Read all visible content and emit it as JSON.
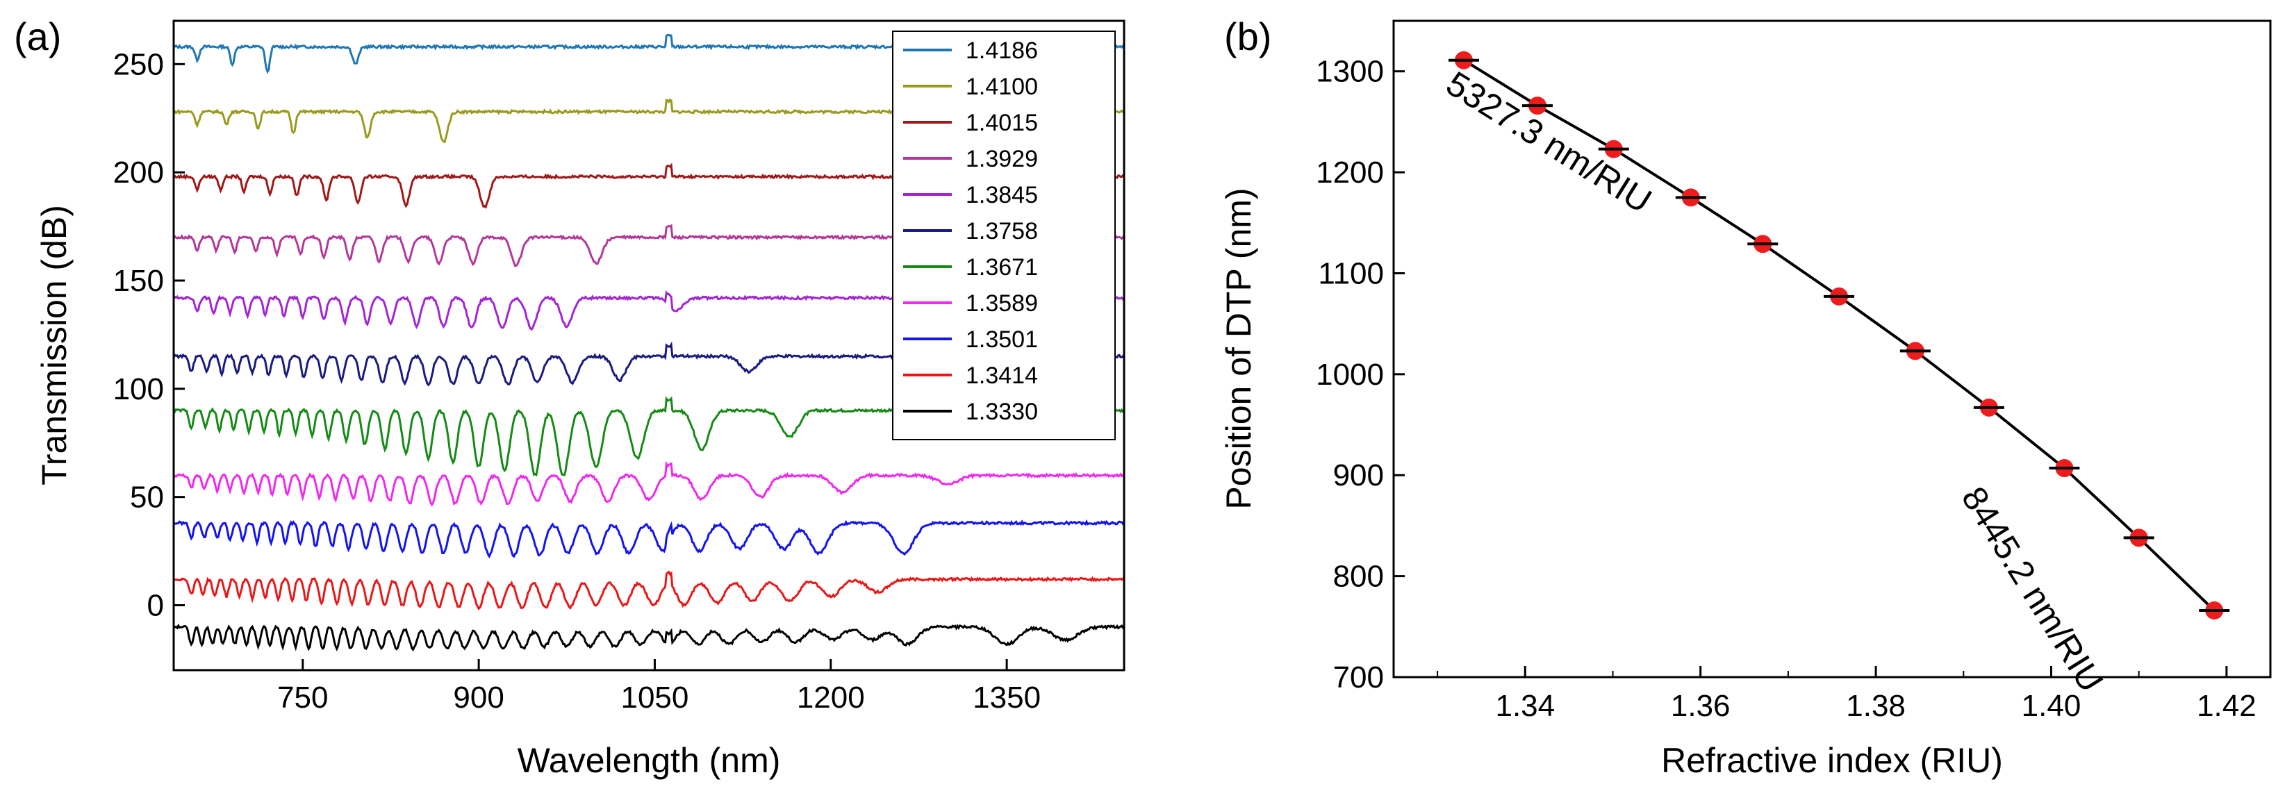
{
  "chart_data": [
    {
      "panel_label": "(a)",
      "type": "line",
      "xlabel": "Wavelength (nm)",
      "ylabel": "Transmission (dB)",
      "xlim": [
        640,
        1450
      ],
      "ylim": [
        -30,
        270
      ],
      "xticks": [
        750,
        900,
        1050,
        1200,
        1350
      ],
      "yticks": [
        0,
        50,
        100,
        150,
        200,
        250
      ],
      "legend": "top-right",
      "series": [
        {
          "name": "1.4186",
          "color": "#1f77b4",
          "baseline": 258,
          "dips": [
            [
              660,
              6
            ],
            [
              690,
              8
            ],
            [
              720,
              12
            ],
            [
              795,
              8
            ]
          ]
        },
        {
          "name": "1.4100",
          "color": "#9a9a1e",
          "baseline": 228,
          "dips": [
            [
              660,
              6
            ],
            [
              685,
              6
            ],
            [
              712,
              8
            ],
            [
              742,
              10
            ],
            [
              805,
              12
            ],
            [
              870,
              14
            ]
          ]
        },
        {
          "name": "1.4015",
          "color": "#a01818",
          "baseline": 198,
          "dips": [
            [
              660,
              6
            ],
            [
              680,
              6
            ],
            [
              700,
              7
            ],
            [
              722,
              8
            ],
            [
              745,
              9
            ],
            [
              770,
              11
            ],
            [
              797,
              12
            ],
            [
              838,
              13
            ],
            [
              905,
              14
            ]
          ]
        },
        {
          "name": "1.3929",
          "color": "#b2399b",
          "baseline": 170,
          "dips": [
            [
              660,
              6
            ],
            [
              676,
              6
            ],
            [
              692,
              7
            ],
            [
              710,
              7
            ],
            [
              728,
              8
            ],
            [
              748,
              8
            ],
            [
              768,
              9
            ],
            [
              790,
              10
            ],
            [
              815,
              11
            ],
            [
              840,
              11
            ],
            [
              866,
              12
            ],
            [
              895,
              12
            ],
            [
              932,
              13
            ],
            [
              1000,
              12
            ]
          ]
        },
        {
          "name": "1.3845",
          "color": "#a226d3",
          "baseline": 142,
          "dips": [
            [
              660,
              6
            ],
            [
              674,
              7
            ],
            [
              688,
              7
            ],
            [
              703,
              8
            ],
            [
              718,
              8
            ],
            [
              734,
              9
            ],
            [
              750,
              9
            ],
            [
              768,
              10
            ],
            [
              786,
              11
            ],
            [
              805,
              12
            ],
            [
              825,
              12
            ],
            [
              847,
              13
            ],
            [
              870,
              13
            ],
            [
              894,
              14
            ],
            [
              920,
              14
            ],
            [
              945,
              14
            ],
            [
              975,
              13
            ],
            [
              1068,
              6
            ]
          ]
        },
        {
          "name": "1.3758",
          "color": "#1a1a80",
          "baseline": 115,
          "dips": [
            [
              655,
              7
            ],
            [
              668,
              7
            ],
            [
              681,
              8
            ],
            [
              694,
              8
            ],
            [
              707,
              8
            ],
            [
              721,
              9
            ],
            [
              736,
              9
            ],
            [
              751,
              10
            ],
            [
              767,
              10
            ],
            [
              783,
              11
            ],
            [
              800,
              11
            ],
            [
              818,
              12
            ],
            [
              837,
              12
            ],
            [
              857,
              13
            ],
            [
              878,
              13
            ],
            [
              900,
              13
            ],
            [
              925,
              13
            ],
            [
              950,
              12
            ],
            [
              980,
              12
            ],
            [
              1020,
              11
            ],
            [
              1130,
              7
            ]
          ]
        },
        {
          "name": "1.3671",
          "color": "#158a15",
          "baseline": 90,
          "dips": [
            [
              655,
              8
            ],
            [
              667,
              8
            ],
            [
              679,
              9
            ],
            [
              691,
              9
            ],
            [
              704,
              10
            ],
            [
              717,
              10
            ],
            [
              730,
              11
            ],
            [
              744,
              11
            ],
            [
              758,
              12
            ],
            [
              772,
              13
            ],
            [
              787,
              14
            ],
            [
              803,
              16
            ],
            [
              820,
              18
            ],
            [
              838,
              20
            ],
            [
              857,
              22
            ],
            [
              878,
              24
            ],
            [
              900,
              26
            ],
            [
              922,
              28
            ],
            [
              948,
              30
            ],
            [
              972,
              30
            ],
            [
              1000,
              26
            ],
            [
              1035,
              22
            ],
            [
              1090,
              18
            ],
            [
              1165,
              12
            ]
          ]
        },
        {
          "name": "1.3589",
          "color": "#ee2aee",
          "baseline": 60,
          "dips": [
            [
              655,
              6
            ],
            [
              666,
              6
            ],
            [
              677,
              7
            ],
            [
              688,
              7
            ],
            [
              700,
              8
            ],
            [
              712,
              8
            ],
            [
              724,
              9
            ],
            [
              737,
              9
            ],
            [
              750,
              10
            ],
            [
              764,
              10
            ],
            [
              778,
              11
            ],
            [
              793,
              11
            ],
            [
              808,
              12
            ],
            [
              824,
              12
            ],
            [
              841,
              13
            ],
            [
              860,
              13
            ],
            [
              880,
              13
            ],
            [
              902,
              13
            ],
            [
              925,
              13
            ],
            [
              950,
              12
            ],
            [
              978,
              12
            ],
            [
              1010,
              12
            ],
            [
              1045,
              11
            ],
            [
              1090,
              11
            ],
            [
              1140,
              10
            ],
            [
              1210,
              8
            ],
            [
              1300,
              4
            ]
          ]
        },
        {
          "name": "1.3501",
          "color": "#1414ee",
          "baseline": 38,
          "dips": [
            [
              655,
              7
            ],
            [
              666,
              7
            ],
            [
              677,
              7
            ],
            [
              688,
              8
            ],
            [
              699,
              8
            ],
            [
              711,
              9
            ],
            [
              723,
              9
            ],
            [
              735,
              10
            ],
            [
              748,
              10
            ],
            [
              761,
              11
            ],
            [
              775,
              11
            ],
            [
              789,
              12
            ],
            [
              804,
              12
            ],
            [
              819,
              13
            ],
            [
              835,
              13
            ],
            [
              852,
              14
            ],
            [
              870,
              14
            ],
            [
              889,
              14
            ],
            [
              909,
              15
            ],
            [
              930,
              15
            ],
            [
              952,
              15
            ],
            [
              976,
              14
            ],
            [
              1001,
              14
            ],
            [
              1028,
              14
            ],
            [
              1057,
              13
            ],
            [
              1088,
              13
            ],
            [
              1122,
              12
            ],
            [
              1160,
              12
            ],
            [
              1190,
              14
            ],
            [
              1262,
              14
            ]
          ]
        },
        {
          "name": "1.3414",
          "color": "#e81818",
          "baseline": 12,
          "dips": [
            [
              655,
              7
            ],
            [
              665,
              7
            ],
            [
              675,
              8
            ],
            [
              685,
              8
            ],
            [
              696,
              8
            ],
            [
              707,
              9
            ],
            [
              718,
              9
            ],
            [
              729,
              9
            ],
            [
              741,
              10
            ],
            [
              753,
              10
            ],
            [
              766,
              11
            ],
            [
              779,
              11
            ],
            [
              792,
              11
            ],
            [
              806,
              12
            ],
            [
              820,
              12
            ],
            [
              835,
              12
            ],
            [
              850,
              13
            ],
            [
              866,
              13
            ],
            [
              883,
              13
            ],
            [
              900,
              13
            ],
            [
              918,
              13
            ],
            [
              937,
              13
            ],
            [
              957,
              13
            ],
            [
              978,
              13
            ],
            [
              1000,
              12
            ],
            [
              1024,
              12
            ],
            [
              1049,
              12
            ],
            [
              1075,
              12
            ],
            [
              1103,
              11
            ],
            [
              1133,
              10
            ],
            [
              1165,
              10
            ],
            [
              1200,
              8
            ],
            [
              1240,
              6
            ]
          ]
        },
        {
          "name": "1.3330",
          "color": "#000000",
          "baseline": -10,
          "dips": [
            [
              655,
              8
            ],
            [
              664,
              8
            ],
            [
              673,
              8
            ],
            [
              682,
              8
            ],
            [
              692,
              8
            ],
            [
              702,
              8
            ],
            [
              712,
              9
            ],
            [
              722,
              9
            ],
            [
              733,
              9
            ],
            [
              744,
              9
            ],
            [
              755,
              10
            ],
            [
              767,
              10
            ],
            [
              779,
              10
            ],
            [
              791,
              10
            ],
            [
              804,
              10
            ],
            [
              817,
              10
            ],
            [
              830,
              10
            ],
            [
              844,
              10
            ],
            [
              858,
              10
            ],
            [
              873,
              10
            ],
            [
              888,
              10
            ],
            [
              904,
              10
            ],
            [
              921,
              10
            ],
            [
              938,
              10
            ],
            [
              956,
              9
            ],
            [
              975,
              9
            ],
            [
              995,
              9
            ],
            [
              1016,
              9
            ],
            [
              1038,
              8
            ],
            [
              1062,
              8
            ],
            [
              1087,
              8
            ],
            [
              1113,
              8
            ],
            [
              1141,
              7
            ],
            [
              1170,
              7
            ],
            [
              1202,
              6
            ],
            [
              1235,
              6
            ],
            [
              1265,
              8
            ],
            [
              1350,
              8
            ],
            [
              1400,
              6
            ]
          ]
        }
      ]
    },
    {
      "panel_label": "(b)",
      "type": "scatter",
      "xlabel": "Refractive index (RIU)",
      "ylabel": "Position of DTP (nm)",
      "xlim": [
        1.325,
        1.425
      ],
      "ylim": [
        700,
        1350
      ],
      "xticks": [
        "1.34",
        "1.36",
        "1.38",
        "1.40",
        "1.42"
      ],
      "yticks": [
        "700",
        "800",
        "900",
        "1000",
        "1100",
        "1200",
        "1300"
      ],
      "marker_color": "#ee1c1c",
      "points": [
        {
          "x": 1.333,
          "y": 1311
        },
        {
          "x": 1.3414,
          "y": 1266
        },
        {
          "x": 1.3501,
          "y": 1223
        },
        {
          "x": 1.3589,
          "y": 1175
        },
        {
          "x": 1.3671,
          "y": 1129
        },
        {
          "x": 1.3758,
          "y": 1077
        },
        {
          "x": 1.3845,
          "y": 1023
        },
        {
          "x": 1.3929,
          "y": 967
        },
        {
          "x": 1.4015,
          "y": 907
        },
        {
          "x": 1.41,
          "y": 838
        },
        {
          "x": 1.4186,
          "y": 766
        }
      ],
      "annotations": [
        "5327.3 nm/RIU",
        "8445.2 nm/RIU"
      ]
    }
  ]
}
